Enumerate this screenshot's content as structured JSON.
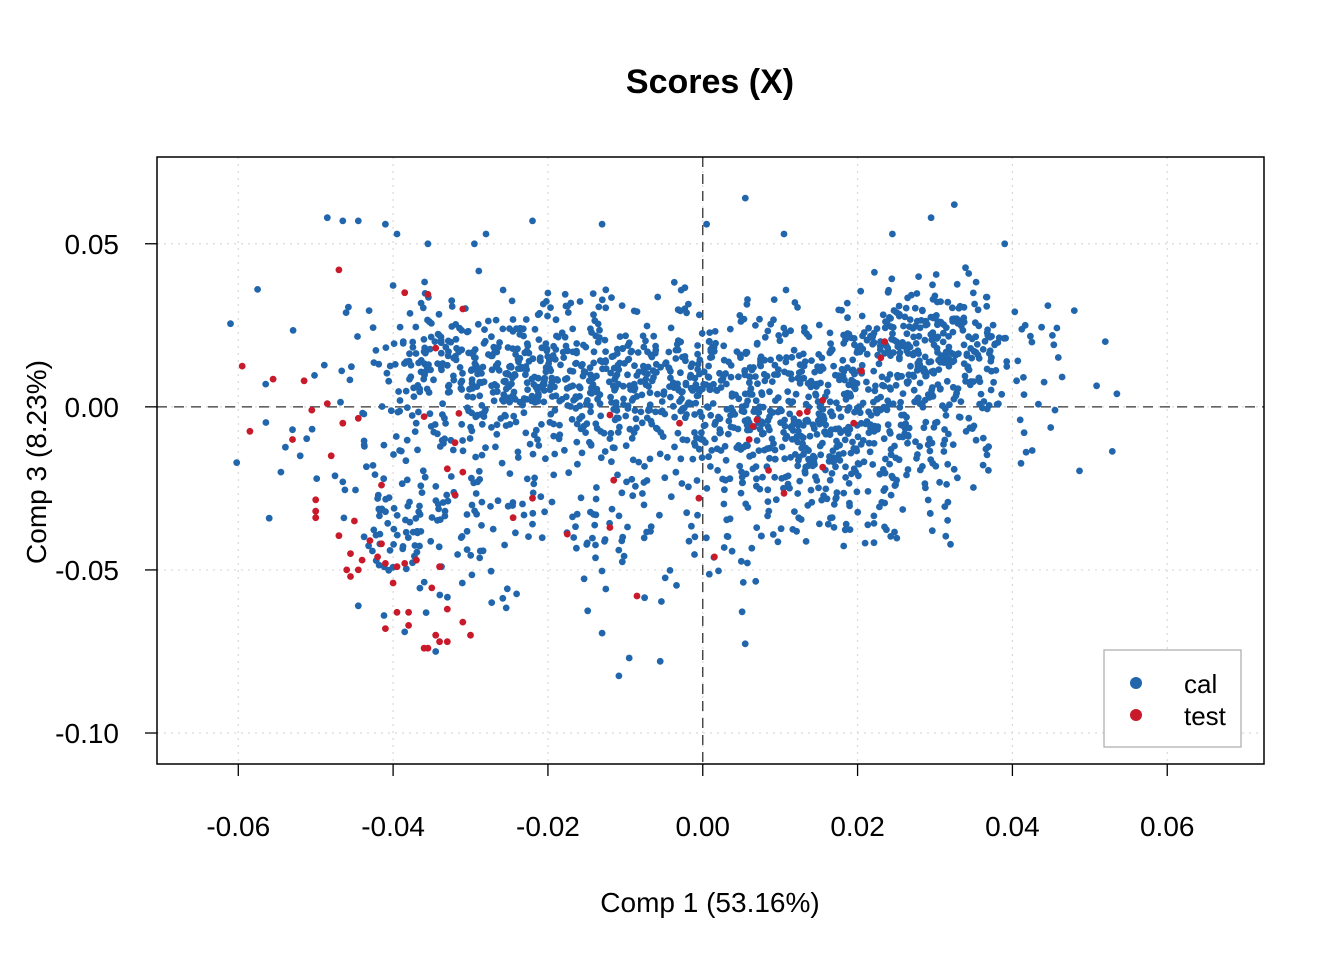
{
  "chart_data": {
    "type": "scatter",
    "title": "Scores (X)",
    "xlabel": "Comp 1 (53.16%)",
    "ylabel": "Comp 3 (8.23%)",
    "xlim": [
      -0.0705,
      0.0725
    ],
    "ylim": [
      -0.1095,
      0.0766
    ],
    "xticks": [
      -0.06,
      -0.04,
      -0.02,
      0.0,
      0.02,
      0.04,
      0.06
    ],
    "xtick_labels": [
      "-0.06",
      "-0.04",
      "-0.02",
      "0.00",
      "0.02",
      "0.04",
      "0.06"
    ],
    "yticks": [
      0.05,
      0.0,
      -0.05,
      -0.1
    ],
    "ytick_labels": [
      "0.05",
      "0.00",
      "-0.05",
      "-0.10"
    ],
    "grid": true,
    "reference_lines": {
      "x": 0,
      "y": 0,
      "style": "dashed"
    },
    "legend_position": "bottom-right",
    "series": [
      {
        "name": "cal",
        "color": "#2166ac",
        "generator": {
          "count": 1950,
          "seed": 7
        },
        "x": [
          -0.061,
          -0.0575,
          -0.0485,
          -0.0465,
          -0.0445,
          -0.041,
          -0.0395,
          -0.0355,
          -0.0295,
          -0.028,
          -0.022,
          -0.013,
          0.0005,
          0.0055,
          0.0105,
          0.0245,
          0.0295,
          0.0325,
          0.039,
          0.048,
          0.052,
          0.0535,
          0.0455,
          0.041,
          -0.0055,
          -0.0095,
          -0.0345,
          -0.0385,
          -0.0445,
          -0.052,
          -0.053,
          -0.0545,
          -0.0465
        ],
        "y": [
          0.0255,
          0.036,
          0.058,
          0.057,
          0.057,
          0.056,
          0.053,
          0.05,
          0.05,
          0.053,
          0.057,
          0.056,
          0.056,
          0.064,
          0.053,
          0.053,
          0.058,
          0.062,
          0.05,
          0.0295,
          0.02,
          0.004,
          -0.001,
          -0.004,
          -0.078,
          -0.077,
          -0.075,
          -0.069,
          -0.061,
          -0.015,
          -0.007,
          -0.02,
          -0.023
        ]
      },
      {
        "name": "test",
        "color": "#c81a2a",
        "x": [
          -0.047,
          -0.0385,
          -0.0355,
          -0.031,
          -0.0595,
          -0.0555,
          -0.0515,
          -0.0505,
          -0.0585,
          -0.053,
          -0.048,
          -0.05,
          -0.047,
          -0.0455,
          -0.044,
          -0.0445,
          -0.0455,
          -0.041,
          -0.0385,
          -0.037,
          -0.04,
          -0.0395,
          -0.038,
          -0.041,
          -0.035,
          -0.033,
          -0.03,
          -0.0345,
          -0.0355,
          -0.033,
          -0.031,
          -0.034,
          -0.036,
          -0.038,
          -0.043,
          -0.0415,
          -0.05,
          -0.05,
          -0.045,
          -0.0415,
          -0.046,
          -0.042,
          -0.0395,
          -0.037,
          -0.034,
          -0.032,
          -0.031,
          -0.032,
          -0.033,
          -0.0245,
          -0.022,
          -0.0175,
          -0.012,
          -0.0115,
          -0.0085,
          -0.003,
          -0.0005,
          0.0015,
          0.006,
          0.007,
          0.0085,
          0.0105,
          0.0125,
          0.0155,
          0.0155,
          0.0195,
          0.0205,
          0.023,
          0.0235,
          -0.0315,
          -0.0345,
          -0.0485,
          -0.0465,
          -0.0445,
          -0.036,
          -0.012,
          0.0065,
          0.0135
        ],
        "y": [
          0.042,
          0.035,
          0.0345,
          0.03,
          0.0125,
          0.0085,
          0.008,
          -0.001,
          -0.0075,
          -0.01,
          -0.015,
          -0.0285,
          -0.0395,
          -0.045,
          -0.047,
          -0.05,
          -0.052,
          -0.048,
          -0.048,
          -0.047,
          -0.054,
          -0.063,
          -0.063,
          -0.068,
          -0.0555,
          -0.062,
          -0.07,
          -0.07,
          -0.074,
          -0.072,
          -0.066,
          -0.072,
          -0.074,
          -0.067,
          -0.041,
          -0.024,
          -0.034,
          -0.032,
          -0.035,
          -0.042,
          -0.05,
          -0.046,
          -0.049,
          -0.047,
          -0.049,
          -0.027,
          -0.02,
          -0.011,
          -0.019,
          -0.034,
          -0.028,
          -0.039,
          -0.037,
          -0.0225,
          -0.058,
          -0.005,
          -0.028,
          -0.046,
          -0.01,
          -0.004,
          -0.0195,
          -0.0265,
          -0.002,
          0.002,
          -0.0185,
          -0.005,
          0.011,
          0.015,
          0.02,
          -0.002,
          0.018,
          0.001,
          -0.005,
          -0.0035,
          -0.003,
          -0.0025,
          -0.006,
          -0.0015
        ]
      }
    ]
  },
  "legend": {
    "items": [
      {
        "label": "cal",
        "color": "#2166ac"
      },
      {
        "label": "test",
        "color": "#c81a2a"
      }
    ]
  }
}
